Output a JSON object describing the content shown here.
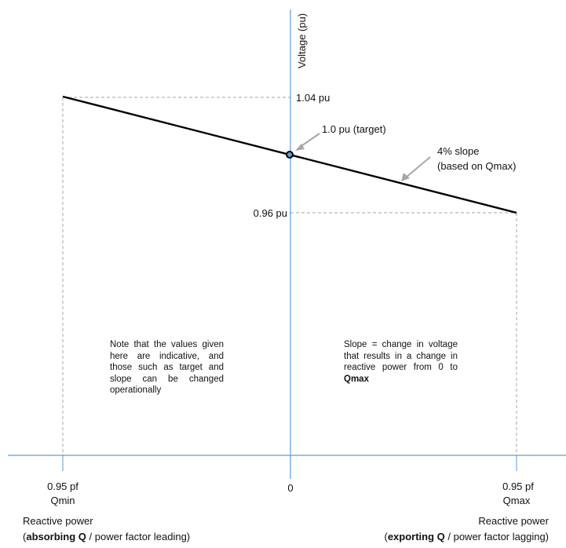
{
  "diagram": {
    "y_axis_label": "Voltage (pu)",
    "v_upper_label": "1.04 pu",
    "v_lower_label": "0.96 pu",
    "target_label": "1.0 pu (target)",
    "slope_label_line1": "4% slope",
    "slope_label_line2": "(based on Qmax)",
    "origin_label": "0",
    "left": {
      "pf": "0.95 pf",
      "q": "Qmin",
      "axis": "Reactive power",
      "paren_open": "(",
      "bold": "absorbing Q",
      "rest": " / power factor leading)"
    },
    "right": {
      "pf": "0.95 pf",
      "q": "Qmax",
      "axis": "Reactive power",
      "paren_open": "(",
      "bold": "exporting Q",
      "rest": " / power factor lagging)"
    },
    "note_left": "Note that the values given here are indicative, and those such as target and slope can be changed operationally",
    "note_right_text": "Slope = change in voltage that results in a change in reactive power from 0 to ",
    "note_right_bold": "Qmax",
    "colors": {
      "axis": "#5b9bd5",
      "droop_line": "#000000",
      "dashed": "#a6a6a6",
      "arrow": "#a6a6a6",
      "marker_fill": "#5b9bd5"
    }
  }
}
